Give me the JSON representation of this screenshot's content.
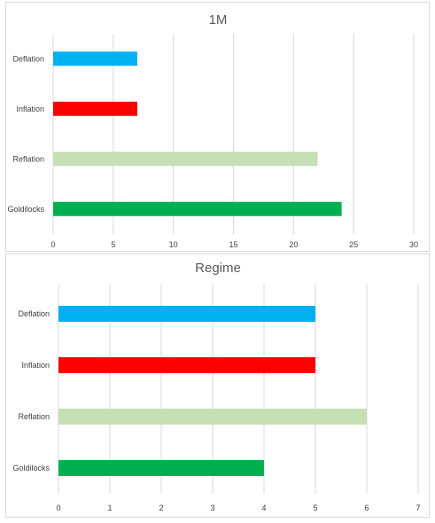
{
  "chart_data": [
    {
      "type": "bar",
      "orientation": "horizontal",
      "title": "1M",
      "xlabel": "",
      "ylabel": "",
      "categories": [
        "Deflation",
        "Inflation",
        "Reflation",
        "Goldilocks"
      ],
      "values": [
        7,
        7,
        22,
        24
      ],
      "colors": [
        "#00b0f0",
        "#ff0000",
        "#c5e0b4",
        "#00b050"
      ],
      "xlim": [
        0,
        30
      ],
      "xticks": [
        "0",
        "5",
        "10",
        "15",
        "20",
        "25",
        "30"
      ],
      "grid": true,
      "legend": "none"
    },
    {
      "type": "bar",
      "orientation": "horizontal",
      "title": "Regime",
      "xlabel": "",
      "ylabel": "",
      "categories": [
        "Deflation",
        "Inflation",
        "Reflation",
        "Goldilocks"
      ],
      "values": [
        5,
        5,
        6,
        4
      ],
      "colors": [
        "#00b0f0",
        "#ff0000",
        "#c5e0b4",
        "#00b050"
      ],
      "xlim": [
        0,
        7
      ],
      "xticks": [
        "0",
        "1",
        "2",
        "3",
        "4",
        "5",
        "6",
        "7"
      ],
      "grid": true,
      "legend": "none"
    }
  ]
}
